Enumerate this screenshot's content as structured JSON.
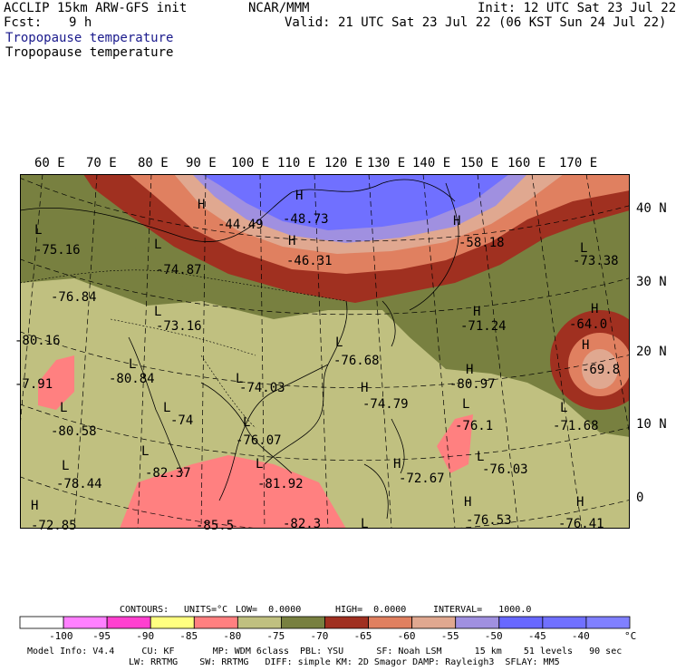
{
  "header": {
    "model": "ACCLIP 15km ARW-GFS init",
    "center": "NCAR/MMM",
    "init": "Init: 12 UTC Sat 23 Jul 22",
    "fcst_label": "Fcst:",
    "fcst_value": "9 h",
    "valid": "Valid: 21 UTC Sat 23 Jul 22 (06 KST Sun 24 Jul 22)",
    "field1": "Tropopause temperature",
    "field2": "Tropopause temperature"
  },
  "map": {
    "lon_labels": [
      "60 E",
      "70 E",
      "80 E",
      "90 E",
      "100 E",
      "110 E",
      "120 E",
      "130 E",
      "140 E",
      "150 E",
      "160 E",
      "170 E"
    ],
    "lat_labels": [
      "40 N",
      "30 N",
      "20 N",
      "10 N",
      "0"
    ],
    "annotations": [
      {
        "text": "H"
      },
      {
        "text": "-44.49"
      },
      {
        "text": "H"
      },
      {
        "text": "-48.73"
      },
      {
        "text": "H"
      },
      {
        "text": "-46.31"
      },
      {
        "text": "H"
      },
      {
        "text": "-58.18"
      },
      {
        "text": "L"
      },
      {
        "text": "-75.16"
      },
      {
        "text": "L"
      },
      {
        "text": "-74.87"
      },
      {
        "text": "L"
      },
      {
        "text": "-73.38"
      },
      {
        "text": "-76.84"
      },
      {
        "text": "L"
      },
      {
        "text": "-73.16"
      },
      {
        "text": "H"
      },
      {
        "text": "-71.24"
      },
      {
        "text": "H"
      },
      {
        "text": "-64.0"
      },
      {
        "text": "-80.16"
      },
      {
        "text": "L"
      },
      {
        "text": "-80.84"
      },
      {
        "text": "L"
      },
      {
        "text": "-76.68"
      },
      {
        "text": "H"
      },
      {
        "text": "-69.8"
      },
      {
        "text": "-7.91"
      },
      {
        "text": "L"
      },
      {
        "text": "-74.03"
      },
      {
        "text": "H"
      },
      {
        "text": "-74.79"
      },
      {
        "text": "H"
      },
      {
        "text": "-80.97"
      },
      {
        "text": "L"
      },
      {
        "text": "-74"
      },
      {
        "text": "L"
      },
      {
        "text": "-80.58"
      },
      {
        "text": "L"
      },
      {
        "text": "-76.1"
      },
      {
        "text": "L"
      },
      {
        "text": "-71.68"
      },
      {
        "text": "L"
      },
      {
        "text": "-76.07"
      },
      {
        "text": "L"
      },
      {
        "text": "-82.37"
      },
      {
        "text": "L"
      },
      {
        "text": "-81.92"
      },
      {
        "text": "H"
      },
      {
        "text": "-72.67"
      },
      {
        "text": "L"
      },
      {
        "text": "-76.03"
      },
      {
        "text": "L"
      },
      {
        "text": "-78.44"
      },
      {
        "text": "H"
      },
      {
        "text": "-72.85"
      },
      {
        "text": "-85.5"
      },
      {
        "text": "-82.3"
      },
      {
        "text": "L"
      },
      {
        "text": "H"
      },
      {
        "text": "-76.53"
      },
      {
        "text": "H"
      },
      {
        "text": "-76.41"
      }
    ]
  },
  "contours_line": {
    "contours": "CONTOURS:",
    "units": "UNITS=°C",
    "low": "LOW=  0.0000",
    "high": "HIGH=  0.0000",
    "interval": "INTERVAL=   1000.0"
  },
  "colorbar": {
    "colors": [
      "#ffffff",
      "#ff80ff",
      "#ff40d0",
      "#ffff80",
      "#ff8080",
      "#c0c080",
      "#788040",
      "#a03020",
      "#e08060",
      "#e0a890",
      "#a090e0",
      "#6868ff",
      "#7070ff",
      "#8080ff"
    ],
    "labels": [
      "-100",
      "-95",
      "-90",
      "-85",
      "-80",
      "-75",
      "-70",
      "-65",
      "-60",
      "-55",
      "-50",
      "-45",
      "-40"
    ],
    "unit": "°C"
  },
  "footer": {
    "line1": "Model Info: V4.4     CU: KF       MP: WDM 6class  PBL: YSU      SF: Noah LSM      15 km    51 levels   90 sec",
    "line2": "LW: RRTMG    SW: RRTMG   DIFF: simple KM: 2D Smagor DAMP: Rayleigh3  SFLAY: MM5"
  }
}
